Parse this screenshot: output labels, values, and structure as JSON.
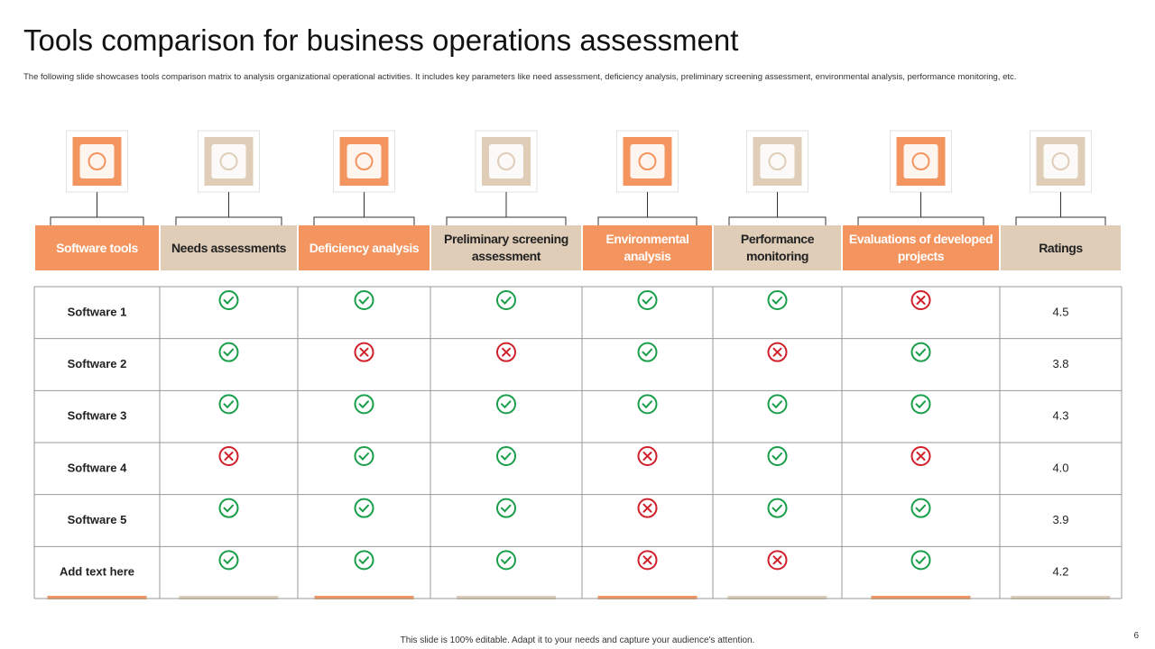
{
  "title": "Tools comparison for business operations assessment",
  "subtitle": "The following slide showcases tools comparison matrix to analysis organizational operational activities. It includes key parameters like need assessment, deficiency analysis, preliminary screening assessment, environmental analysis, performance monitoring, etc.",
  "table": {
    "headers": [
      "Software tools",
      "Needs assessments",
      "Deficiency analysis",
      "Preliminary screening assessment",
      "Environmental analysis",
      "Performance monitoring",
      "Evaluations of developed projects",
      "Ratings"
    ],
    "rows": [
      {
        "name": "Software 1",
        "checks": [
          true,
          true,
          true,
          true,
          true,
          false
        ],
        "rating": "4.5"
      },
      {
        "name": "Software 2",
        "checks": [
          true,
          false,
          false,
          true,
          false,
          true
        ],
        "rating": "3.8"
      },
      {
        "name": "Software 3",
        "checks": [
          true,
          true,
          true,
          true,
          true,
          true
        ],
        "rating": "4.3"
      },
      {
        "name": "Software 4",
        "checks": [
          false,
          true,
          true,
          false,
          true,
          false
        ],
        "rating": "4.0"
      },
      {
        "name": "Software 5",
        "checks": [
          true,
          true,
          true,
          false,
          true,
          true
        ],
        "rating": "3.9"
      },
      {
        "name": "Add text here",
        "checks": [
          true,
          true,
          true,
          false,
          false,
          true
        ],
        "rating": "4.2"
      }
    ]
  },
  "footer": "This slide is 100% editable. Adapt it to your needs and capture your audience's attention.",
  "page_number": "6"
}
